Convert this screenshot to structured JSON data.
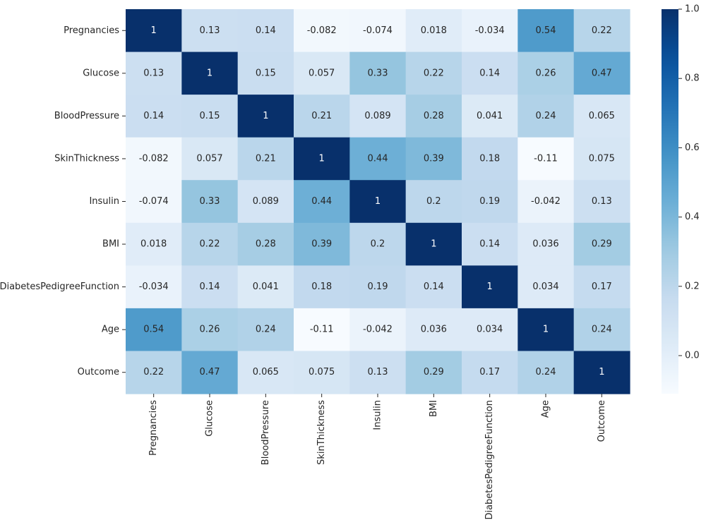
{
  "chart_data": {
    "type": "heatmap",
    "title": "",
    "xlabel": "",
    "ylabel": "",
    "cmap": "Blues",
    "annot": true,
    "rows": [
      "Pregnancies",
      "Glucose",
      "BloodPressure",
      "SkinThickness",
      "Insulin",
      "BMI",
      "DiabetesPedigreeFunction",
      "Age",
      "Outcome"
    ],
    "columns": [
      "Pregnancies",
      "Glucose",
      "BloodPressure",
      "SkinThickness",
      "Insulin",
      "BMI",
      "DiabetesPedigreeFunction",
      "Age",
      "Outcome"
    ],
    "values": [
      [
        1,
        0.13,
        0.14,
        -0.082,
        -0.074,
        0.018,
        -0.034,
        0.54,
        0.22
      ],
      [
        0.13,
        1,
        0.15,
        0.057,
        0.33,
        0.22,
        0.14,
        0.26,
        0.47
      ],
      [
        0.14,
        0.15,
        1,
        0.21,
        0.089,
        0.28,
        0.041,
        0.24,
        0.065
      ],
      [
        -0.082,
        0.057,
        0.21,
        1,
        0.44,
        0.39,
        0.18,
        -0.11,
        0.075
      ],
      [
        -0.074,
        0.33,
        0.089,
        0.44,
        1,
        0.2,
        0.19,
        -0.042,
        0.13
      ],
      [
        0.018,
        0.22,
        0.28,
        0.39,
        0.2,
        1,
        0.14,
        0.036,
        0.29
      ],
      [
        -0.034,
        0.14,
        0.041,
        0.18,
        0.19,
        0.14,
        1,
        0.034,
        0.17
      ],
      [
        0.54,
        0.26,
        0.24,
        -0.11,
        -0.042,
        0.036,
        0.034,
        1,
        0.24
      ],
      [
        0.22,
        0.47,
        0.065,
        0.075,
        0.13,
        0.29,
        0.17,
        0.24,
        1
      ]
    ],
    "color_range": [
      -0.11,
      1
    ],
    "colorbar": {
      "ticks": [
        0.0,
        0.2,
        0.4,
        0.6,
        0.8,
        1.0
      ],
      "tick_labels": [
        "0.0",
        "0.2",
        "0.4",
        "0.6",
        "0.8",
        "1.0"
      ]
    }
  }
}
